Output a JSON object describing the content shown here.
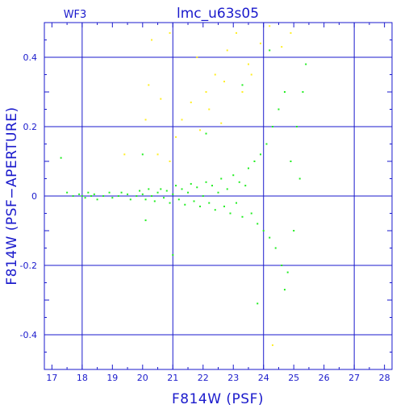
{
  "chart_data": {
    "type": "scatter",
    "title": "lmc_u63s05",
    "subtitle": "WF3",
    "xlabel": "F814W (PSF)",
    "ylabel": "F814W (PSF−APERTURE)",
    "xlim": [
      16.75,
      28.25
    ],
    "ylim": [
      -0.5,
      0.5
    ],
    "x_ticks": [
      17,
      18,
      19,
      20,
      21,
      22,
      23,
      24,
      25,
      26,
      27,
      28
    ],
    "y_ticks": [
      -0.4,
      -0.2,
      0,
      0.2,
      0.4
    ],
    "x_tick_labels": [
      "17",
      "18",
      "19",
      "20",
      "21",
      "22",
      "23",
      "24",
      "25",
      "26",
      "27",
      "28"
    ],
    "y_tick_labels": [
      "-0.4",
      "-0.2",
      "0",
      "0.2",
      "0.4"
    ],
    "x_major_grid": [
      18,
      21,
      24,
      27
    ],
    "y_major_grid": [
      -0.4,
      -0.2,
      0,
      0.2,
      0.4
    ],
    "grid": true,
    "colors": {
      "axes": "#1a1acc",
      "accepted": "#22ee22",
      "rejected": "#ffee22"
    },
    "series": [
      {
        "color": "#22ee22",
        "points": [
          [
            17.5,
            0.01
          ],
          [
            17.7,
            0.0
          ],
          [
            17.9,
            0.005
          ],
          [
            18.0,
            0.0
          ],
          [
            18.1,
            -0.005
          ],
          [
            18.2,
            0.01
          ],
          [
            18.3,
            0.0
          ],
          [
            18.4,
            0.005
          ],
          [
            18.5,
            -0.01
          ],
          [
            18.7,
            0.0
          ],
          [
            18.9,
            0.01
          ],
          [
            19.0,
            -0.005
          ],
          [
            19.2,
            0.0
          ],
          [
            19.3,
            0.01
          ],
          [
            19.5,
            0.005
          ],
          [
            19.6,
            -0.01
          ],
          [
            19.8,
            0.0
          ],
          [
            19.9,
            0.015
          ],
          [
            20.0,
            0.005
          ],
          [
            20.1,
            -0.01
          ],
          [
            20.2,
            0.02
          ],
          [
            20.3,
            0.0
          ],
          [
            20.4,
            -0.015
          ],
          [
            20.5,
            0.01
          ],
          [
            20.6,
            0.02
          ],
          [
            20.7,
            -0.005
          ],
          [
            20.8,
            0.015
          ],
          [
            20.9,
            -0.02
          ],
          [
            21.0,
            0.005
          ],
          [
            21.1,
            0.03
          ],
          [
            21.2,
            -0.01
          ],
          [
            21.3,
            0.02
          ],
          [
            21.4,
            -0.025
          ],
          [
            21.5,
            0.01
          ],
          [
            21.6,
            0.035
          ],
          [
            21.7,
            -0.015
          ],
          [
            21.8,
            0.025
          ],
          [
            21.9,
            -0.03
          ],
          [
            22.0,
            0.0
          ],
          [
            22.1,
            0.04
          ],
          [
            22.2,
            -0.02
          ],
          [
            22.3,
            0.03
          ],
          [
            22.4,
            -0.04
          ],
          [
            22.5,
            0.01
          ],
          [
            22.6,
            0.05
          ],
          [
            22.7,
            -0.03
          ],
          [
            22.8,
            0.02
          ],
          [
            22.9,
            -0.05
          ],
          [
            23.0,
            0.06
          ],
          [
            23.1,
            -0.02
          ],
          [
            23.2,
            0.04
          ],
          [
            23.3,
            -0.06
          ],
          [
            23.4,
            0.03
          ],
          [
            23.5,
            0.08
          ],
          [
            23.6,
            -0.05
          ],
          [
            23.7,
            0.1
          ],
          [
            23.8,
            -0.08
          ],
          [
            23.9,
            0.12
          ],
          [
            24.0,
            -0.1
          ],
          [
            24.1,
            0.15
          ],
          [
            24.2,
            -0.12
          ],
          [
            24.3,
            0.2
          ],
          [
            24.4,
            -0.15
          ],
          [
            24.5,
            0.25
          ],
          [
            24.6,
            -0.2
          ],
          [
            24.7,
            0.3
          ],
          [
            24.8,
            -0.22
          ],
          [
            24.9,
            0.1
          ],
          [
            25.0,
            -0.1
          ],
          [
            25.1,
            0.2
          ],
          [
            25.2,
            0.05
          ],
          [
            25.3,
            0.3
          ],
          [
            25.4,
            0.38
          ],
          [
            20.0,
            0.12
          ],
          [
            22.1,
            0.18
          ],
          [
            23.3,
            0.32
          ],
          [
            24.2,
            0.42
          ],
          [
            24.7,
            -0.27
          ],
          [
            23.8,
            -0.31
          ],
          [
            17.3,
            0.11
          ],
          [
            20.1,
            -0.07
          ],
          [
            21.0,
            -0.17
          ]
        ]
      },
      {
        "color": "#ffee22",
        "points": [
          [
            20.3,
            0.45
          ],
          [
            20.9,
            0.47
          ],
          [
            21.8,
            0.4
          ],
          [
            22.1,
            0.3
          ],
          [
            22.4,
            0.35
          ],
          [
            22.8,
            0.42
          ],
          [
            23.1,
            0.47
          ],
          [
            23.5,
            0.38
          ],
          [
            23.9,
            0.44
          ],
          [
            24.2,
            0.49
          ],
          [
            24.6,
            0.43
          ],
          [
            24.9,
            0.47
          ],
          [
            20.2,
            0.32
          ],
          [
            20.6,
            0.28
          ],
          [
            21.3,
            0.22
          ],
          [
            21.6,
            0.27
          ],
          [
            22.2,
            0.25
          ],
          [
            22.7,
            0.33
          ],
          [
            23.3,
            0.3
          ],
          [
            23.6,
            0.35
          ],
          [
            20.1,
            0.22
          ],
          [
            21.1,
            0.17
          ],
          [
            21.9,
            0.19
          ],
          [
            22.6,
            0.21
          ],
          [
            20.5,
            0.12
          ],
          [
            20.9,
            0.1
          ],
          [
            24.3,
            -0.43
          ],
          [
            19.4,
            0.12
          ]
        ]
      }
    ]
  }
}
